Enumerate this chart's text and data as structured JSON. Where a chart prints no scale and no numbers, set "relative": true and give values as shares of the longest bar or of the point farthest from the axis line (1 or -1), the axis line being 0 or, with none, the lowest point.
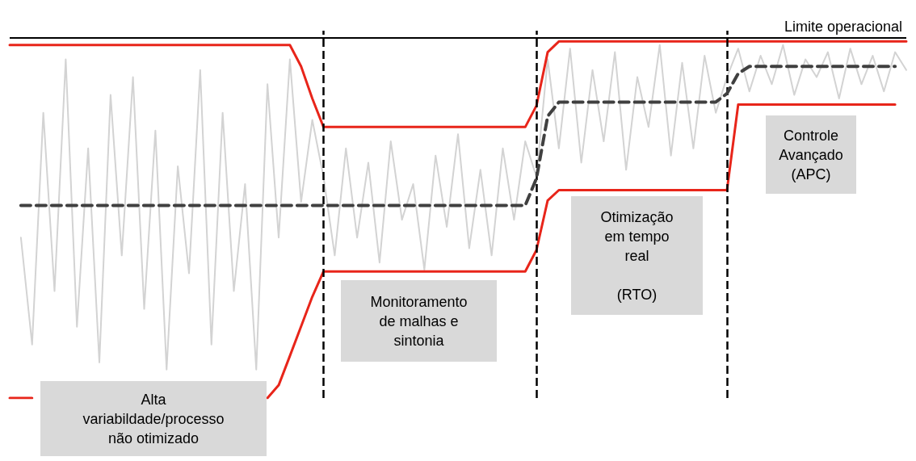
{
  "chart_data": {
    "type": "line",
    "relative": true,
    "tick_labels": false,
    "marker": "none",
    "grid": "x",
    "categories": [
      null,
      null,
      null,
      null,
      null,
      null,
      null,
      null,
      null,
      null,
      null,
      null,
      null,
      null,
      null,
      null,
      null,
      null,
      null,
      null,
      null,
      null,
      null,
      null,
      null,
      null,
      null,
      null,
      null,
      null,
      null,
      null,
      null,
      null,
      null,
      null,
      null,
      null,
      null,
      null,
      null,
      null,
      null,
      null,
      null,
      null,
      null,
      null,
      null,
      null,
      null,
      null,
      null,
      null,
      null,
      null,
      null,
      null,
      null,
      null,
      null,
      null,
      null,
      null,
      null,
      null,
      null,
      null,
      null,
      null,
      null,
      null,
      null,
      null,
      null,
      null,
      null,
      null,
      null,
      null,
      null
    ],
    "series": [
      {
        "color": "#d3d3d3",
        "values": [
          null,
          0.45,
          0.15,
          0.8,
          0.3,
          0.95,
          0.2,
          0.7,
          0.1,
          0.85,
          0.4,
          0.9,
          0.25,
          0.75,
          0.08,
          0.65,
          0.35,
          0.92,
          0.15,
          0.8,
          0.3,
          0.6,
          0.08,
          0.88,
          0.45,
          0.95,
          0.55,
          0.78,
          0.62,
          0.4,
          0.7,
          0.45,
          0.66,
          0.38,
          0.72,
          0.5,
          0.6,
          0.36,
          0.68,
          0.48,
          0.74,
          0.42,
          0.64,
          0.4,
          0.7,
          0.5,
          0.72,
          0.62,
          0.95,
          0.7,
          0.98,
          0.66,
          0.92,
          0.72,
          0.97,
          0.64,
          0.9,
          0.76,
          0.99,
          0.68,
          0.94,
          0.7,
          0.96,
          0.8,
          0.9,
          0.98,
          0.86,
          0.96,
          0.88,
          0.99,
          0.85,
          0.95,
          0.9,
          0.97,
          0.84,
          0.98,
          0.88,
          0.96,
          0.86,
          0.97,
          0.92
        ]
      },
      {
        "color": "#e8251a",
        "values": [
          0.99,
          0.99,
          0.99,
          0.99,
          0.99,
          0.99,
          0.99,
          0.99,
          0.99,
          0.99,
          0.99,
          0.99,
          0.99,
          0.99,
          0.99,
          0.99,
          0.99,
          0.99,
          0.99,
          0.99,
          0.99,
          0.99,
          0.99,
          0.99,
          0.99,
          0.99,
          0.93,
          0.84,
          0.76,
          0.76,
          0.76,
          0.76,
          0.76,
          0.76,
          0.76,
          0.76,
          0.76,
          0.76,
          0.76,
          0.76,
          0.76,
          0.76,
          0.76,
          0.76,
          0.76,
          0.76,
          0.76,
          0.82,
          0.97,
          1,
          1,
          1,
          1,
          1,
          1,
          1,
          1,
          1,
          1,
          1,
          1,
          1,
          1,
          1,
          1,
          1,
          1,
          1,
          1,
          1,
          1,
          1,
          1,
          1,
          1,
          1,
          1,
          1,
          1,
          1,
          1
        ]
      },
      {
        "color": "#e8251a",
        "values": [
          0,
          0,
          0,
          null,
          null,
          null,
          null,
          null,
          null,
          null,
          null,
          null,
          null,
          null,
          null,
          null,
          null,
          null,
          null,
          null,
          null,
          null,
          null,
          0,
          0.036,
          0.118,
          0.201,
          0.284,
          0.355,
          0.355,
          0.355,
          0.355,
          0.355,
          0.355,
          0.355,
          0.355,
          0.355,
          0.355,
          0.355,
          0.355,
          0.355,
          0.355,
          0.355,
          0.355,
          0.355,
          0.355,
          0.355,
          0.415,
          0.554,
          0.583,
          0.583,
          0.583,
          0.583,
          0.583,
          0.583,
          0.583,
          0.583,
          0.583,
          0.583,
          0.583,
          0.583,
          0.583,
          0.583,
          0.583,
          0.583,
          0.823,
          0.823,
          0.823,
          0.823,
          0.823,
          0.823,
          0.823,
          0.823,
          0.823,
          0.823,
          0.823,
          0.823,
          0.823,
          0.823,
          0.823,
          null
        ]
      },
      {
        "color": "#404040",
        "line_style": "dashed",
        "values": [
          null,
          0.54,
          0.54,
          0.54,
          0.54,
          0.54,
          0.54,
          0.54,
          0.54,
          0.54,
          0.54,
          0.54,
          0.54,
          0.54,
          0.54,
          0.54,
          0.54,
          0.54,
          0.54,
          0.54,
          0.54,
          0.54,
          0.54,
          0.54,
          0.54,
          0.54,
          0.54,
          0.54,
          0.54,
          0.54,
          0.54,
          0.54,
          0.54,
          0.54,
          0.54,
          0.54,
          0.54,
          0.54,
          0.54,
          0.54,
          0.54,
          0.54,
          0.54,
          0.54,
          0.54,
          0.54,
          0.54,
          0.616,
          0.79,
          0.83,
          0.83,
          0.83,
          0.83,
          0.83,
          0.83,
          0.83,
          0.83,
          0.83,
          0.83,
          0.83,
          0.83,
          0.83,
          0.83,
          0.83,
          0.854,
          0.91,
          0.93,
          0.93,
          0.93,
          0.93,
          0.93,
          0.93,
          0.93,
          0.93,
          0.93,
          0.93,
          0.93,
          0.93,
          0.93,
          0.93,
          null
        ]
      }
    ],
    "ref_lines": [
      {
        "axis": "y",
        "value": 1.01,
        "label": "Limite operacional",
        "color": "#000000",
        "line_style": "solid"
      }
    ],
    "annotations": [
      "Alta\nvariabildade/processo\nnão otimizado",
      "Monitoramento\nde malhas e\nsintonia",
      "Otimização\nem tempo\nreal\n\n(RTO)",
      "Controle\nAvançado\n(APC)"
    ]
  }
}
